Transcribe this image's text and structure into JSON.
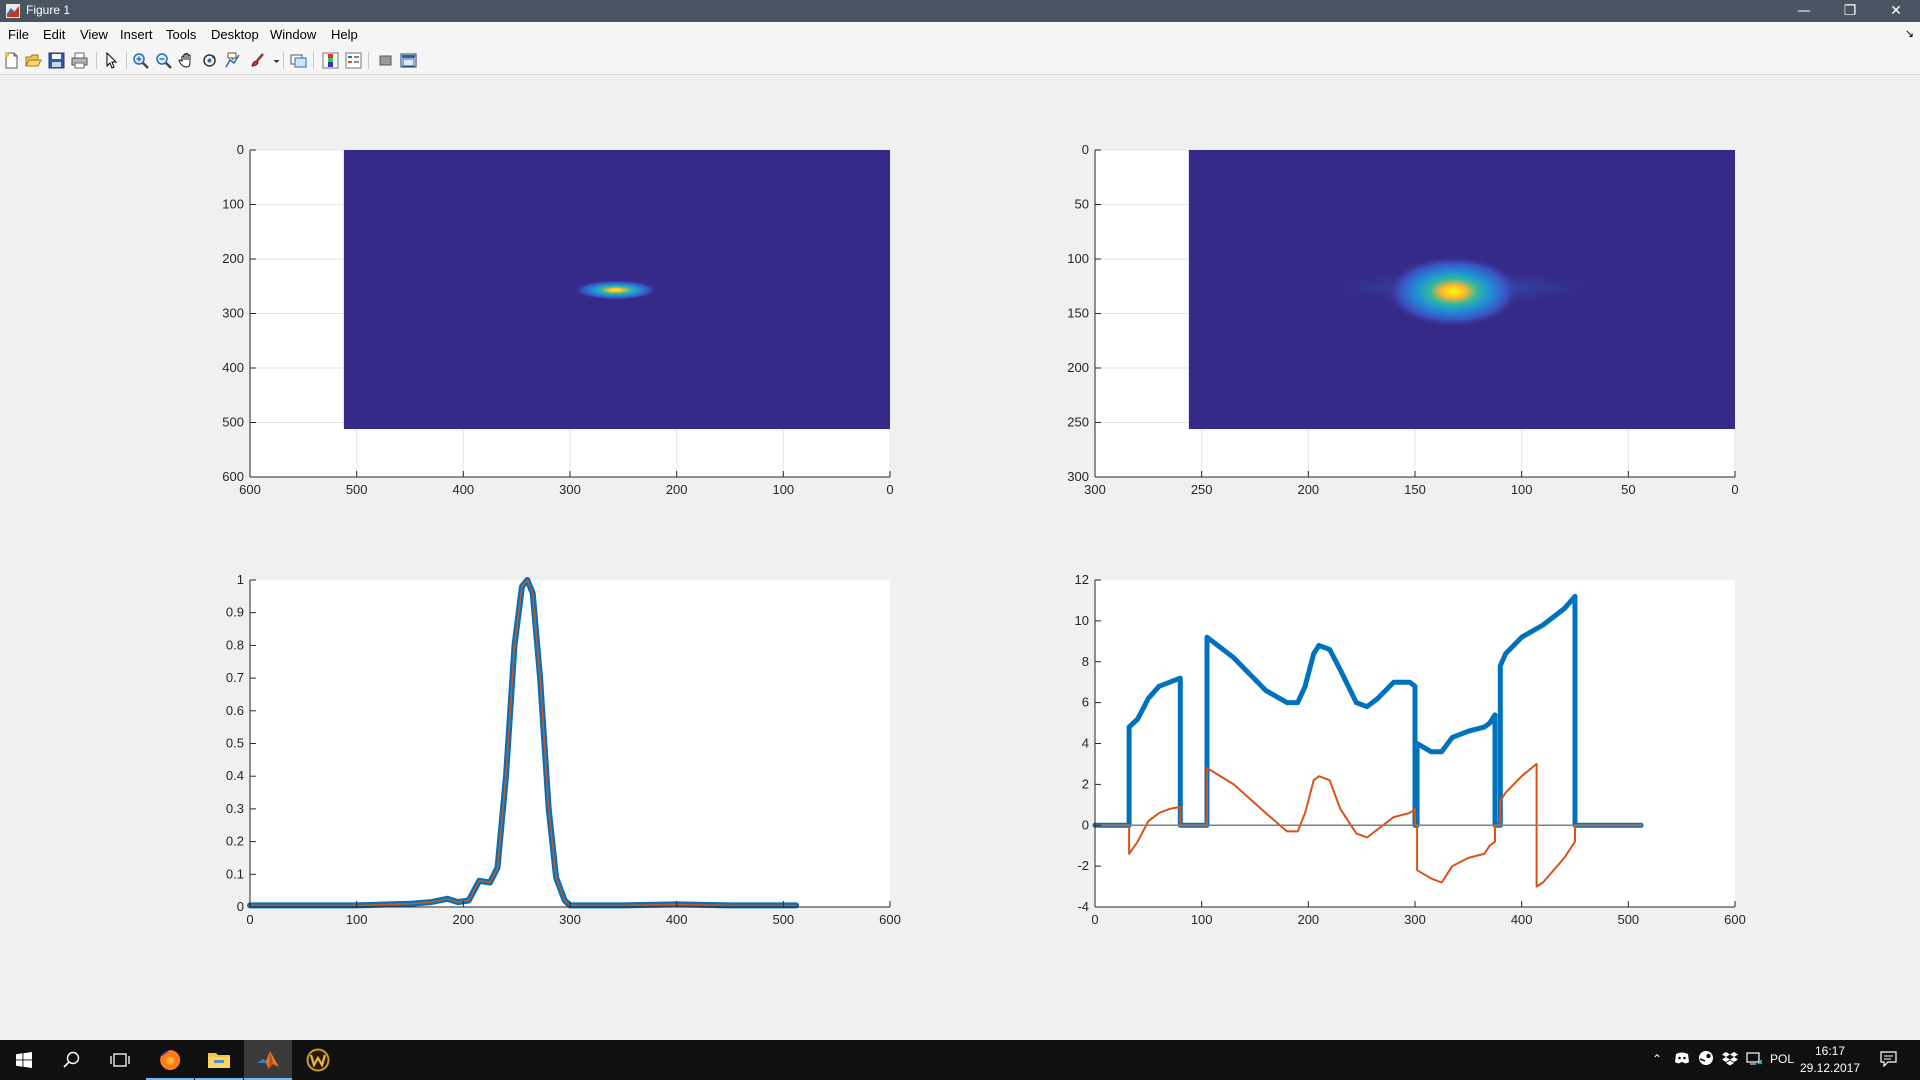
{
  "window": {
    "title": "Figure 1"
  },
  "menu": [
    "File",
    "Edit",
    "View",
    "Insert",
    "Tools",
    "Desktop",
    "Window",
    "Help"
  ],
  "toolbar_icons": [
    "new-figure-icon",
    "open-file-icon",
    "save-icon",
    "print-icon",
    "edit-plot-icon",
    "zoom-in-icon",
    "zoom-out-icon",
    "pan-icon",
    "rotate-3d-icon",
    "data-cursor-icon",
    "brush-icon",
    "link-plot-icon",
    "insert-colorbar-icon",
    "insert-legend-icon",
    "hide-plot-tools-icon",
    "show-plot-tools-icon"
  ],
  "colors": {
    "image_bg": "#352a87",
    "series_blue": "#0072bd",
    "series_orange": "#d95319",
    "series_gray": "#7f7f7f",
    "titlebar": "#4a5563"
  },
  "chart_data": [
    {
      "type": "heatmap",
      "xlim": [
        0,
        600
      ],
      "ylim": [
        0,
        600
      ],
      "x_direction": "reverse",
      "y_direction": "reverse",
      "xticks": [
        0,
        100,
        200,
        300,
        400,
        500,
        600
      ],
      "yticks": [
        0,
        100,
        200,
        300,
        400,
        500,
        600
      ],
      "image_extent": {
        "x": [
          0,
          512
        ],
        "y": [
          0,
          512
        ]
      },
      "peak": {
        "x": 257,
        "y": 257
      },
      "grid": true
    },
    {
      "type": "heatmap",
      "xlim": [
        0,
        300
      ],
      "ylim": [
        0,
        300
      ],
      "x_direction": "reverse",
      "y_direction": "reverse",
      "xticks": [
        0,
        50,
        100,
        150,
        200,
        250,
        300
      ],
      "yticks": [
        0,
        50,
        100,
        150,
        200,
        250,
        300
      ],
      "image_extent": {
        "x": [
          0,
          256
        ],
        "y": [
          0,
          256
        ]
      },
      "peak": {
        "x": 132,
        "y": 128
      },
      "grid": true
    },
    {
      "type": "line",
      "xlim": [
        0,
        600
      ],
      "ylim": [
        0,
        1
      ],
      "xticks": [
        0,
        100,
        200,
        300,
        400,
        500,
        600
      ],
      "yticks": [
        0,
        0.1,
        0.2,
        0.3,
        0.4,
        0.5,
        0.6,
        0.7,
        0.8,
        0.9,
        1
      ],
      "series": [
        {
          "color": "#0072bd",
          "width": 6,
          "x": [
            0,
            100,
            150,
            170,
            185,
            195,
            205,
            215,
            225,
            232,
            240,
            248,
            255,
            260,
            265,
            272,
            280,
            287,
            295,
            300,
            310,
            350,
            400,
            450,
            512
          ],
          "y": [
            0.005,
            0.005,
            0.01,
            0.015,
            0.025,
            0.015,
            0.02,
            0.08,
            0.075,
            0.12,
            0.4,
            0.8,
            0.98,
            1.0,
            0.96,
            0.7,
            0.3,
            0.09,
            0.02,
            0.005,
            0.005,
            0.005,
            0.008,
            0.005,
            0.005
          ]
        },
        {
          "color": "#d95319",
          "width": 1.5,
          "x": [
            0,
            100,
            150,
            170,
            185,
            195,
            205,
            215,
            225,
            232,
            240,
            248,
            255,
            260,
            265,
            272,
            280,
            287,
            295,
            300,
            310,
            350,
            400,
            450,
            512
          ],
          "y": [
            0.005,
            0.005,
            0.01,
            0.015,
            0.025,
            0.015,
            0.02,
            0.08,
            0.075,
            0.12,
            0.4,
            0.8,
            0.98,
            1.0,
            0.96,
            0.7,
            0.3,
            0.09,
            0.02,
            0.005,
            0.005,
            0.005,
            0.008,
            0.005,
            0.005
          ]
        }
      ]
    },
    {
      "type": "line",
      "xlim": [
        0,
        600
      ],
      "ylim": [
        -4,
        12
      ],
      "xticks": [
        0,
        100,
        200,
        300,
        400,
        500,
        600
      ],
      "yticks": [
        -4,
        -2,
        0,
        2,
        4,
        6,
        8,
        10,
        12
      ],
      "series": [
        {
          "color": "#0072bd",
          "width": 5,
          "x": [
            0,
            32,
            32,
            40,
            50,
            60,
            70,
            80,
            80,
            105,
            105,
            130,
            160,
            180,
            190,
            197,
            205,
            210,
            220,
            230,
            245,
            255,
            265,
            280,
            295,
            300,
            300,
            302,
            302,
            315,
            325,
            335,
            350,
            365,
            370,
            375,
            375,
            380,
            380,
            385,
            400,
            420,
            440,
            450,
            450,
            512
          ],
          "y": [
            0,
            0,
            4.8,
            5.2,
            6.2,
            6.8,
            7.0,
            7.2,
            0,
            0,
            9.2,
            8.2,
            6.6,
            6.0,
            6.0,
            6.8,
            8.4,
            8.8,
            8.6,
            7.6,
            6.0,
            5.8,
            6.2,
            7.0,
            7.0,
            6.8,
            0,
            0,
            4.0,
            3.6,
            3.6,
            4.3,
            4.6,
            4.8,
            5.0,
            5.4,
            0,
            0,
            7.8,
            8.4,
            9.2,
            9.8,
            10.6,
            11.2,
            0,
            0
          ]
        },
        {
          "color": "#d95319",
          "width": 2,
          "x": [
            0,
            32,
            32,
            40,
            50,
            60,
            70,
            80,
            80,
            105,
            105,
            130,
            160,
            180,
            190,
            197,
            205,
            210,
            220,
            230,
            245,
            255,
            265,
            280,
            295,
            300,
            300,
            302,
            302,
            315,
            325,
            335,
            350,
            365,
            370,
            375,
            375,
            380,
            380,
            385,
            400,
            414,
            414,
            420,
            440,
            450,
            450,
            512
          ],
          "y": [
            0,
            0,
            -1.4,
            -0.8,
            0.2,
            0.6,
            0.8,
            0.9,
            0,
            0,
            2.8,
            2.0,
            0.6,
            -0.3,
            -0.3,
            0.6,
            2.2,
            2.4,
            2.2,
            0.8,
            -0.4,
            -0.6,
            -0.2,
            0.4,
            0.6,
            0.8,
            0,
            0,
            -2.2,
            -2.6,
            -2.8,
            -2.0,
            -1.6,
            -1.4,
            -1.0,
            -0.8,
            0,
            0,
            1.2,
            1.6,
            2.4,
            3.0,
            -3.0,
            -2.8,
            -1.6,
            -0.8,
            0,
            0
          ]
        },
        {
          "color": "#7f7f7f",
          "width": 1.5,
          "x": [
            0,
            32,
            80,
            105,
            300,
            302,
            375,
            380,
            450,
            512
          ],
          "y": [
            0,
            0,
            0,
            0,
            0,
            0,
            0,
            0,
            0,
            0
          ]
        }
      ]
    }
  ],
  "taskbar": {
    "apps": [
      "windows-start-icon",
      "search-icon",
      "task-view-icon",
      "firefox-icon",
      "file-explorer-icon",
      "matlab-icon",
      "warcraft-icon"
    ],
    "tray_lang": "POL",
    "time": "16:17",
    "date": "29.12.2017"
  }
}
